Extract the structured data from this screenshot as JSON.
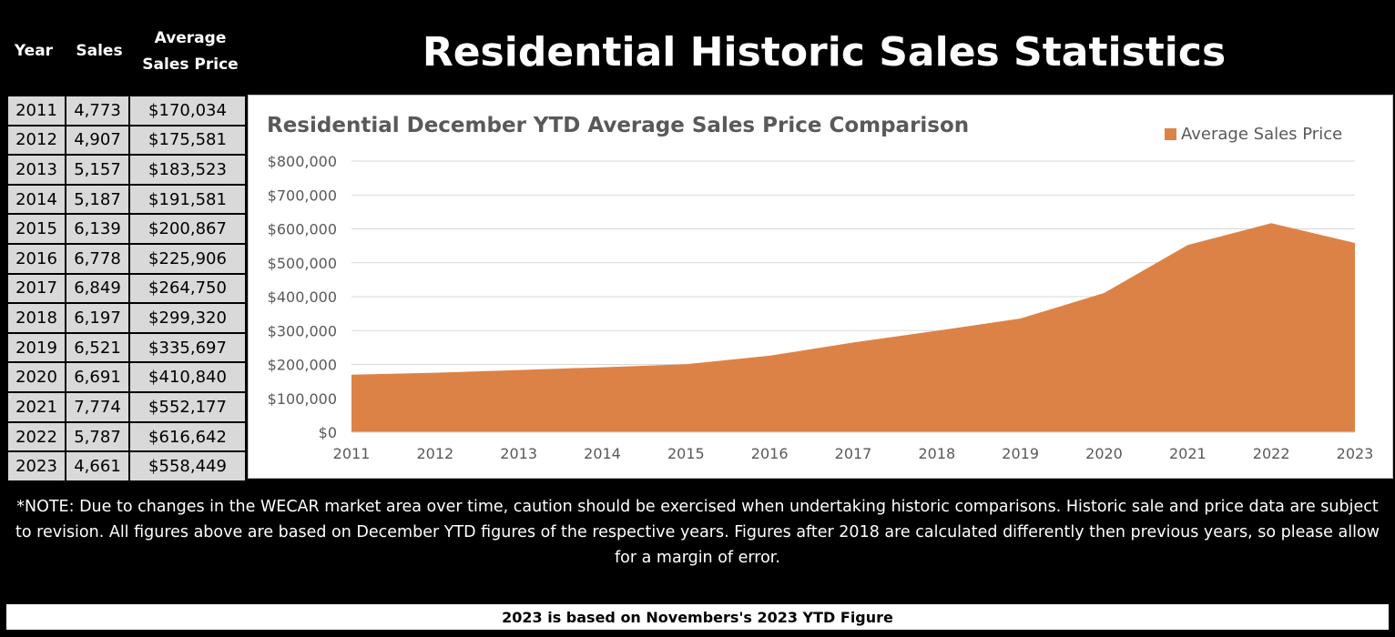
{
  "header": {
    "col_year": "Year",
    "col_sales": "Sales",
    "col_avg_line1": "Average",
    "col_avg_line2": "Sales Price",
    "title": "Residential Historic Sales Statistics"
  },
  "table": {
    "rows": [
      {
        "year": "2011",
        "sales": "4,773",
        "price": "$170,034"
      },
      {
        "year": "2012",
        "sales": "4,907",
        "price": "$175,581"
      },
      {
        "year": "2013",
        "sales": "5,157",
        "price": "$183,523"
      },
      {
        "year": "2014",
        "sales": "5,187",
        "price": "$191,581"
      },
      {
        "year": "2015",
        "sales": "6,139",
        "price": "$200,867"
      },
      {
        "year": "2016",
        "sales": "6,778",
        "price": "$225,906"
      },
      {
        "year": "2017",
        "sales": "6,849",
        "price": "$264,750"
      },
      {
        "year": "2018",
        "sales": "6,197",
        "price": "$299,320"
      },
      {
        "year": "2019",
        "sales": "6,521",
        "price": "$335,697"
      },
      {
        "year": "2020",
        "sales": "6,691",
        "price": "$410,840"
      },
      {
        "year": "2021",
        "sales": "7,774",
        "price": "$552,177"
      },
      {
        "year": "2022",
        "sales": "5,787",
        "price": "$616,642"
      },
      {
        "year": "2023",
        "sales": "4,661",
        "price": "$558,449"
      }
    ]
  },
  "chart_data": {
    "type": "area",
    "title": "Residential December YTD Average Sales Price Comparison",
    "categories": [
      "2011",
      "2012",
      "2013",
      "2014",
      "2015",
      "2016",
      "2017",
      "2018",
      "2019",
      "2020",
      "2021",
      "2022",
      "2023"
    ],
    "series": [
      {
        "name": "Average Sales Price",
        "values": [
          170034,
          175581,
          183523,
          191581,
          200867,
          225906,
          264750,
          299320,
          335697,
          410840,
          552177,
          616642,
          558449
        ]
      }
    ],
    "ylim": [
      0,
      800000
    ],
    "yticks": [
      0,
      100000,
      200000,
      300000,
      400000,
      500000,
      600000,
      700000,
      800000
    ],
    "ytick_labels": [
      "$0",
      "$100,000",
      "$200,000",
      "$300,000",
      "$400,000",
      "$500,000",
      "$600,000",
      "$700,000",
      "$800,000"
    ],
    "xlabel": "",
    "ylabel": "",
    "grid": true,
    "legend_position": "top-right",
    "color": "#dd8246"
  },
  "note": "*NOTE: Due to changes in the WECAR market area over time, caution should be exercised when undertaking historic comparisons. Historic sale and price data are subject to revision. All figures above are based on December YTD figures of the respective years. Figures after 2018 are calculated differently then previous years, so please allow for a margin of error.",
  "footer": "2023 is based on Novembers's 2023 YTD Figure"
}
